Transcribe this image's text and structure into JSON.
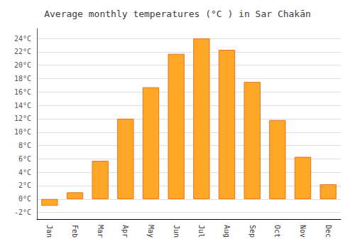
{
  "chart_data": {
    "type": "bar",
    "title": "Average monthly temperatures (°C ) in Sar Chakān",
    "categories": [
      "Jan",
      "Feb",
      "Mar",
      "Apr",
      "May",
      "Jun",
      "Jul",
      "Aug",
      "Sep",
      "Oct",
      "Nov",
      "Dec"
    ],
    "values": [
      -1.0,
      1.0,
      5.7,
      12.0,
      16.7,
      21.7,
      24.0,
      22.3,
      17.5,
      11.8,
      6.3,
      2.2
    ],
    "color": "#FFA726",
    "ylim": [
      -3.0,
      25.5
    ],
    "yticks": [
      {
        "value": -2,
        "label": "-2°C"
      },
      {
        "value": 0,
        "label": "0°C"
      },
      {
        "value": 2,
        "label": "2°C"
      },
      {
        "value": 4,
        "label": "4°C"
      },
      {
        "value": 6,
        "label": "6°C"
      },
      {
        "value": 8,
        "label": "8°C"
      },
      {
        "value": 10,
        "label": "10°C"
      },
      {
        "value": 12,
        "label": "12°C"
      },
      {
        "value": 14,
        "label": "14°C"
      },
      {
        "value": 16,
        "label": "16°C"
      },
      {
        "value": 18,
        "label": "18°C"
      },
      {
        "value": 20,
        "label": "20°C"
      },
      {
        "value": 22,
        "label": "22°C"
      },
      {
        "value": 24,
        "label": "24°C"
      }
    ],
    "grid": true
  }
}
